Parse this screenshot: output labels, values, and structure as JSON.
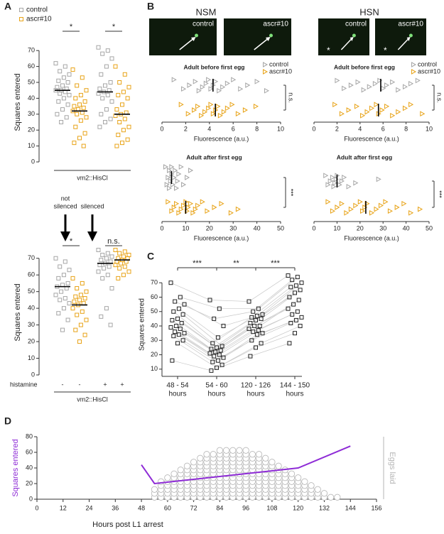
{
  "panels": [
    "A",
    "B",
    "C",
    "D"
  ],
  "panel_a_arrows": [
    {
      "label": [
        "not",
        "silenced"
      ]
    },
    {
      "label": [
        "silenced"
      ]
    }
  ],
  "panel_b": {
    "titles": [
      "NSM",
      "HSN"
    ],
    "images": [
      {
        "label": "control"
      },
      {
        "label": "ascr#10"
      },
      {
        "label": "control",
        "asterisk": "*"
      },
      {
        "label": "ascr#10",
        "asterisk": "*"
      }
    ]
  },
  "chart_data": [
    {
      "type": "strip",
      "orientation": "vertical",
      "ylabel": "Squares entered",
      "ylim": [
        0,
        75
      ],
      "yticks": [
        0,
        10,
        20,
        30,
        40,
        50,
        60,
        70
      ],
      "marker": "square",
      "legend": true,
      "group_label": "vm2::HisCl",
      "significance": [
        "*",
        "*"
      ],
      "series": [
        {
          "name": "control",
          "color": "#a6a6a6",
          "medians": [
            45,
            44
          ],
          "values": [
            [
              62,
              60,
              57,
              55,
              53,
              51,
              50,
              48,
              47,
              46,
              45,
              45,
              44,
              43,
              42,
              40,
              38,
              36,
              33,
              30,
              28,
              25
            ],
            [
              72,
              70,
              68,
              65,
              60,
              55,
              50,
              48,
              46,
              45,
              44,
              43,
              42,
              40,
              38,
              33,
              30,
              27,
              25,
              22
            ]
          ]
        },
        {
          "name": "ascr#10",
          "color": "#e8a317",
          "medians": [
            32,
            30
          ],
          "values": [
            [
              58,
              53,
              48,
              45,
              42,
              40,
              38,
              36,
              35,
              34,
              33,
              32,
              31,
              30,
              28,
              26,
              22,
              18,
              15,
              12,
              10
            ],
            [
              60,
              55,
              50,
              47,
              44,
              42,
              40,
              36,
              33,
              31,
              30,
              29,
              27,
              25,
              22,
              20,
              17,
              14,
              12,
              10
            ]
          ]
        }
      ]
    },
    {
      "type": "strip",
      "orientation": "vertical",
      "ylabel": "Squares entered",
      "ylim": [
        0,
        75
      ],
      "yticks": [
        0,
        10,
        20,
        30,
        40,
        50,
        60,
        70
      ],
      "marker": "square",
      "legend": false,
      "group_label": "vm2::HisCl",
      "row_label": "histamine",
      "significance": [
        "*",
        "n.s."
      ],
      "series": [
        {
          "name": "control",
          "color": "#a6a6a6",
          "medians": [
            53,
            67
          ],
          "histamine": [
            "-",
            "+"
          ],
          "values": [
            [
              70,
              68,
              65,
              63,
              60,
              58,
              55,
              54,
              53,
              52,
              50,
              48,
              46,
              45,
              43,
              40,
              37,
              33,
              27
            ],
            [
              75,
              73,
              72,
              71,
              70,
              69,
              68,
              67,
              66,
              65,
              64,
              62,
              60,
              58,
              52,
              40,
              35,
              30
            ]
          ]
        },
        {
          "name": "ascr#10",
          "color": "#e8a317",
          "medians": [
            42,
            69
          ],
          "histamine": [
            "-",
            "+"
          ],
          "values": [
            [
              58,
              55,
              52,
              50,
              48,
              47,
              46,
              45,
              44,
              43,
              42,
              40,
              38,
              36,
              33,
              30,
              27,
              24,
              20
            ],
            [
              75,
              74,
              73,
              72,
              71,
              70,
              70,
              69,
              68,
              68,
              67,
              66,
              65,
              64,
              62,
              60,
              58
            ]
          ]
        }
      ]
    },
    {
      "type": "strip",
      "orientation": "horizontal",
      "title": "Adult before first egg",
      "xlabel": "Fluorescence (a.u.)",
      "xlim": [
        0,
        10
      ],
      "xticks": [
        0,
        2,
        4,
        6,
        8,
        10
      ],
      "marker": "triangle",
      "legend": true,
      "significance": "n.s.",
      "series": [
        {
          "name": "control",
          "color": "#a6a6a6",
          "median": 4.3,
          "values": [
            1.0,
            1.8,
            2.3,
            2.8,
            3.1,
            3.4,
            3.7,
            3.9,
            4.1,
            4.3,
            4.5,
            4.8,
            5.1,
            5.5,
            6.0,
            6.6,
            7.2,
            8.0,
            8.8
          ]
        },
        {
          "name": "ascr#10",
          "color": "#e8a317",
          "median": 4.5,
          "values": [
            1.6,
            2.2,
            2.7,
            3.0,
            3.3,
            3.6,
            3.9,
            4.1,
            4.3,
            4.5,
            4.7,
            4.9,
            5.2,
            5.5,
            5.9,
            6.4,
            7.0,
            7.9
          ]
        }
      ]
    },
    {
      "type": "strip",
      "orientation": "horizontal",
      "title": "Adult after first egg",
      "xlabel": "Fluorescence (a.u.)",
      "xlim": [
        0,
        50
      ],
      "xticks": [
        0,
        10,
        20,
        30,
        40,
        50
      ],
      "marker": "triangle",
      "legend": false,
      "significance": "***",
      "series": [
        {
          "name": "control",
          "color": "#a6a6a6",
          "median": 4,
          "values": [
            1.5,
            2,
            2.5,
            3,
            3,
            3.5,
            4,
            4,
            4.5,
            5,
            5.5,
            6,
            6.5,
            7,
            8,
            9,
            10.5,
            12
          ]
        },
        {
          "name": "ascr#10",
          "color": "#e8a317",
          "median": 10,
          "values": [
            2.5,
            4,
            5,
            6,
            7,
            8,
            9,
            10,
            10.5,
            11,
            12,
            13,
            14,
            15,
            17,
            19,
            22,
            25,
            29,
            32
          ]
        }
      ]
    },
    {
      "type": "strip",
      "orientation": "horizontal",
      "title": "Adult before first egg",
      "xlabel": "Fluorescence (a.u.)",
      "xlim": [
        0,
        10
      ],
      "xticks": [
        0,
        2,
        4,
        6,
        8,
        10
      ],
      "marker": "triangle",
      "legend": true,
      "significance": "n.s.",
      "series": [
        {
          "name": "control",
          "color": "#a6a6a6",
          "median": 5.8,
          "values": [
            2.0,
            2.6,
            3.2,
            3.8,
            4.3,
            4.8,
            5.3,
            5.7,
            6.0,
            6.3,
            6.8,
            7.3,
            7.9,
            8.4,
            9.0
          ]
        },
        {
          "name": "ascr#10",
          "color": "#e8a317",
          "median": 5.6,
          "values": [
            1.8,
            2.4,
            3.0,
            3.7,
            4.2,
            4.6,
            5.0,
            5.4,
            5.6,
            5.9,
            6.3,
            6.8,
            7.3,
            7.9,
            8.4,
            9.4
          ]
        }
      ]
    },
    {
      "type": "strip",
      "orientation": "horizontal",
      "title": "Adult after first egg",
      "xlabel": "Fluorescence (a.u.)",
      "xlim": [
        0,
        50
      ],
      "xticks": [
        0,
        10,
        20,
        30,
        40,
        50
      ],
      "marker": "triangle",
      "legend": false,
      "significance": "***",
      "series": [
        {
          "name": "control",
          "color": "#a6a6a6",
          "median": 10,
          "values": [
            5,
            6,
            7,
            8,
            8.5,
            9,
            9.5,
            10,
            11,
            12,
            13,
            15,
            18,
            28
          ]
        },
        {
          "name": "ascr#10",
          "color": "#e8a317",
          "median": 22.5,
          "values": [
            6,
            8,
            10,
            12,
            14,
            16,
            18,
            20,
            21,
            22,
            23,
            25,
            27,
            29,
            31,
            33,
            36,
            39,
            42,
            46
          ]
        }
      ]
    },
    {
      "type": "line",
      "ylabel": "Squares entered",
      "ylim": [
        5,
        77
      ],
      "yticks": [
        10,
        20,
        30,
        40,
        50,
        60,
        70
      ],
      "color": "#222222",
      "categories": [
        [
          "48 - 54",
          "hours"
        ],
        [
          "54 - 60",
          "hours"
        ],
        [
          "120 - 126",
          "hours"
        ],
        [
          "144 - 150",
          "hours"
        ]
      ],
      "significance": [
        "***",
        "**",
        "***"
      ],
      "values": [
        [
          70,
          60,
          57,
          55,
          52,
          50,
          48,
          45,
          44,
          42,
          40,
          39,
          38,
          36,
          35,
          34,
          33,
          30,
          28,
          16
        ],
        [
          58,
          52,
          45,
          40,
          32,
          28,
          26,
          25,
          24,
          23,
          22,
          21,
          20,
          19,
          18,
          16,
          15,
          13,
          11,
          9
        ],
        [
          57,
          52,
          50,
          48,
          47,
          46,
          45,
          44,
          42,
          40,
          40,
          38,
          37,
          36,
          35,
          34,
          30,
          28,
          25,
          19
        ],
        [
          75,
          74,
          72,
          70,
          68,
          67,
          65,
          63,
          60,
          58,
          55,
          52,
          50,
          48,
          46,
          44,
          42,
          40,
          35,
          28
        ]
      ]
    },
    {
      "type": "combo",
      "xlabel": "Hours post L1 arrest",
      "xlim": [
        0,
        156
      ],
      "xticks": [
        0,
        12,
        24,
        36,
        48,
        60,
        72,
        84,
        96,
        108,
        120,
        132,
        144,
        156
      ],
      "ylim": [
        0,
        80
      ],
      "yticks": [
        0,
        20,
        40,
        60,
        80
      ],
      "y2lim": [
        0,
        16
      ],
      "series": [
        {
          "name": "Squares entered",
          "color": "#8e2bd6",
          "x": [
            48,
            54,
            120,
            144
          ],
          "values": [
            44,
            20,
            40,
            68
          ]
        },
        {
          "name": "Eggs laid",
          "color": "#b5b5b5",
          "axis": "y2",
          "x": [
            54,
            57,
            60,
            63,
            66,
            69,
            72,
            75,
            78,
            81,
            84,
            87,
            90,
            93,
            96,
            99,
            102,
            105,
            108,
            111,
            114,
            117,
            120,
            123,
            126,
            129,
            132,
            135,
            138
          ],
          "values": [
            3,
            5,
            6,
            7,
            8,
            9,
            10,
            11,
            12,
            12,
            13,
            13,
            13,
            13,
            13,
            12,
            12,
            11,
            10,
            9,
            8,
            7,
            6,
            5,
            4,
            3,
            2,
            1,
            1
          ]
        }
      ]
    }
  ]
}
